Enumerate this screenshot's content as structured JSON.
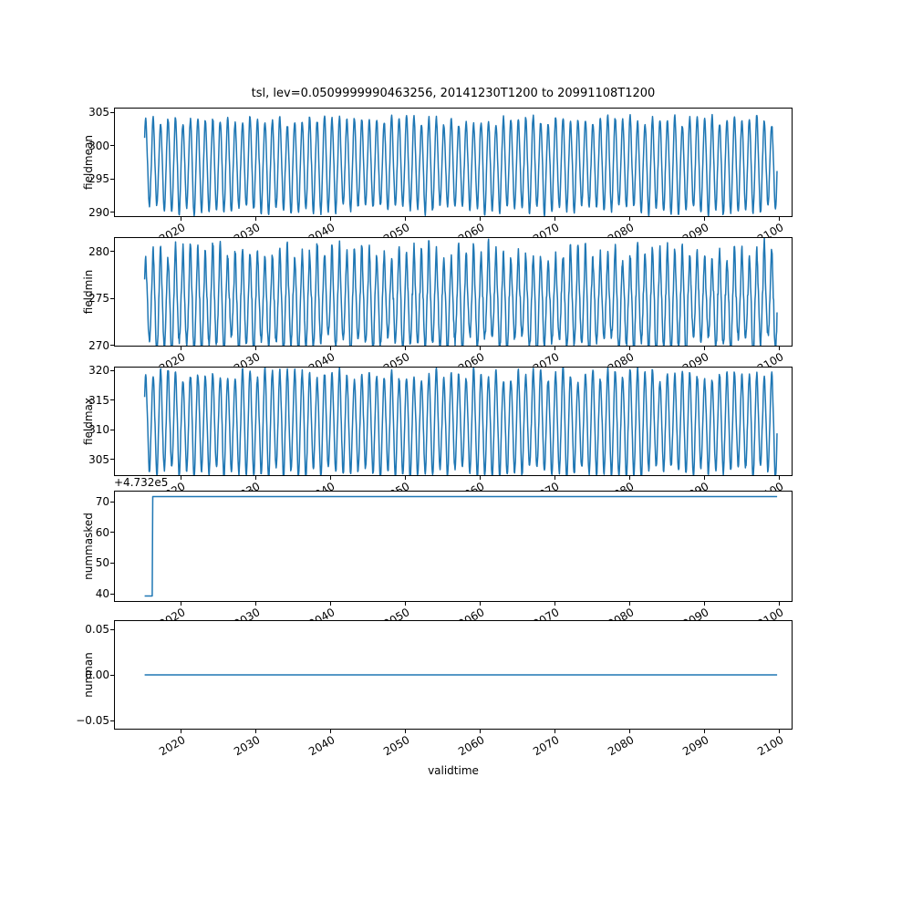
{
  "title": "tsl, lev=0.0509999990463256, 20141230T1200 to 20991108T1200",
  "x_axis": {
    "label": "validtime",
    "lim": [
      2011.0,
      2101.8
    ],
    "tick_values": [
      2020,
      2030,
      2040,
      2050,
      2060,
      2070,
      2080,
      2090,
      2100
    ],
    "tick_labels": [
      "2020",
      "2030",
      "2040",
      "2050",
      "2060",
      "2070",
      "2080",
      "2090",
      "2100"
    ]
  },
  "chart_data": [
    {
      "type": "line",
      "name": "fieldmean",
      "ylabel": "fieldmean",
      "color": "#1f77b4",
      "ylim": [
        289.25,
        305.75
      ],
      "yticks": {
        "values": [
          290,
          295,
          300,
          305
        ],
        "labels": [
          "290",
          "295",
          "300",
          "305"
        ]
      },
      "series": {
        "kind": "seasonal",
        "start": 2014.99,
        "end": 2099.85,
        "samples_per_year": 20,
        "base": 297.4,
        "amplitude": 6.9,
        "amp_jitter": 1.6,
        "noise": 0.3,
        "sharpness": 1.2,
        "phase": 0.12,
        "seed": 11,
        "approx_range": [
          290.2,
          304.7
        ],
        "period_years": 1
      }
    },
    {
      "type": "line",
      "name": "fieldmin",
      "ylabel": "fieldmin",
      "color": "#1f77b4",
      "ylim": [
        269.87,
        281.53
      ],
      "yticks": {
        "values": [
          270,
          275,
          280
        ],
        "labels": [
          "270",
          "275",
          "280"
        ]
      },
      "series": {
        "kind": "seasonal",
        "start": 2014.99,
        "end": 2099.85,
        "samples_per_year": 20,
        "base": 275.5,
        "amplitude": 5.2,
        "amp_jitter": 2.2,
        "noise": 0.45,
        "sharpness": 1.35,
        "sharp_pos": 2.0,
        "sharp_neg": 0.9,
        "phase": 0.12,
        "seed": 22,
        "approx_range": [
          270.4,
          281.0
        ],
        "period_years": 1
      }
    },
    {
      "type": "line",
      "name": "fieldmax",
      "ylabel": "fieldmax",
      "color": "#1f77b4",
      "ylim": [
        302.16,
        320.64
      ],
      "yticks": {
        "values": [
          305,
          310,
          315,
          320
        ],
        "labels": [
          "305",
          "310",
          "315",
          "320"
        ]
      },
      "series": {
        "kind": "seasonal",
        "start": 2014.99,
        "end": 2099.85,
        "samples_per_year": 20,
        "base": 311.4,
        "amplitude": 8.4,
        "amp_jitter": 2.4,
        "noise": 0.4,
        "sharpness": 1.2,
        "phase": 0.12,
        "seed": 33,
        "approx_range": [
          303.0,
          319.8
        ],
        "period_years": 1
      }
    },
    {
      "type": "line",
      "name": "nummasked",
      "ylabel": "nummasked",
      "color": "#1f77b4",
      "ylim": [
        37.35,
        73.65
      ],
      "yticks": {
        "values": [
          40,
          50,
          60,
          70
        ],
        "labels": [
          "40",
          "50",
          "60",
          "70"
        ]
      },
      "offset_text": "+4.732e5",
      "series": {
        "kind": "points",
        "value_offset": 473200,
        "points": [
          [
            2014.99,
            473239
          ],
          [
            2016.0,
            473239
          ],
          [
            2016.08,
            473272
          ],
          [
            2099.85,
            473272
          ]
        ]
      }
    },
    {
      "type": "line",
      "name": "numnan",
      "ylabel": "numnan",
      "color": "#1f77b4",
      "ylim": [
        -0.06,
        0.06
      ],
      "yticks": {
        "values": [
          -0.05,
          0.0,
          0.05
        ],
        "labels": [
          "−0.05",
          "0.00",
          "0.05"
        ]
      },
      "series": {
        "kind": "points",
        "points": [
          [
            2014.99,
            0.0
          ],
          [
            2099.85,
            0.0
          ]
        ]
      }
    }
  ]
}
